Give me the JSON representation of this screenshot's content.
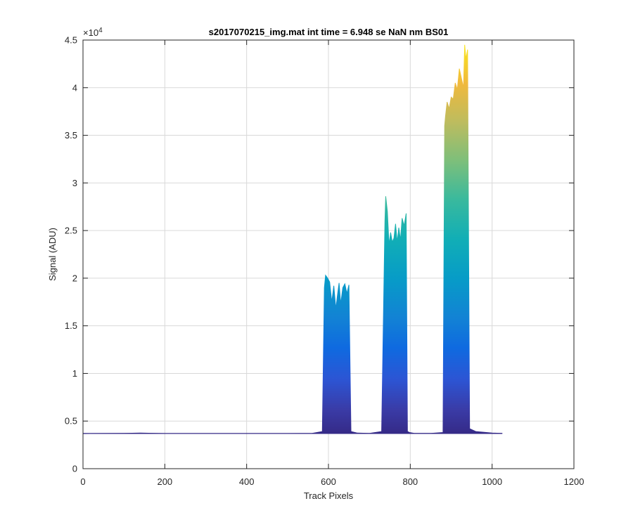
{
  "chart_data": {
    "type": "area",
    "title": "s2017070215_img.mat int time = 6.948 se  NaN nm BS01",
    "xlabel": "Track Pixels",
    "ylabel": "Signal (ADU)",
    "xlim": [
      0,
      1200
    ],
    "ylim": [
      0,
      45000
    ],
    "xticks": [
      0,
      200,
      400,
      600,
      800,
      1000,
      1200
    ],
    "yticks": [
      0,
      5000,
      10000,
      15000,
      20000,
      25000,
      30000,
      35000,
      40000,
      45000
    ],
    "ytick_labels": [
      "0",
      "0.5",
      "1",
      "1.5",
      "2",
      "2.5",
      "3",
      "3.5",
      "4",
      "4.5"
    ],
    "y_exponent_label": "×10",
    "y_exponent_power": "4",
    "grid": true,
    "colormap": "parula",
    "baseline": 3700,
    "series": [
      {
        "x": [
          0,
          100,
          140,
          200,
          300,
          400,
          500,
          560,
          585,
          590,
          593,
          598,
          603,
          608,
          613,
          618,
          622,
          626,
          630,
          635,
          640,
          645,
          650,
          655,
          670,
          700,
          730,
          738,
          740,
          744,
          748,
          752,
          756,
          760,
          764,
          768,
          772,
          776,
          780,
          785,
          790,
          793,
          798,
          810,
          850,
          880,
          884,
          886,
          890,
          895,
          900,
          905,
          910,
          915,
          920,
          925,
          930,
          933,
          936,
          940,
          945,
          960,
          1000,
          1025
        ],
        "y": [
          3680,
          3700,
          3750,
          3690,
          3690,
          3690,
          3690,
          3700,
          3900,
          19000,
          20300,
          20000,
          19600,
          17500,
          19200,
          16800,
          18200,
          19500,
          17300,
          19000,
          19400,
          18400,
          19300,
          3900,
          3750,
          3700,
          3900,
          26000,
          28600,
          27000,
          23500,
          24800,
          23800,
          24200,
          25700,
          23800,
          25300,
          24000,
          26300,
          25500,
          26800,
          3900,
          3800,
          3700,
          3700,
          3800,
          36000,
          37000,
          38500,
          37800,
          39000,
          38800,
          40500,
          39800,
          42000,
          41000,
          40000,
          44500,
          43000,
          44000,
          4200,
          3900,
          3750,
          3700
        ]
      }
    ]
  }
}
